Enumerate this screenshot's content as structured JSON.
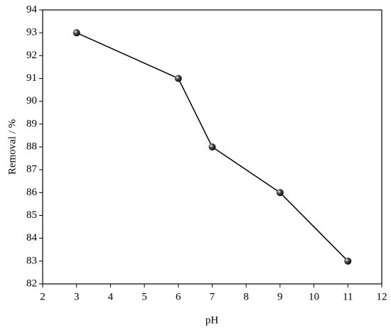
{
  "chart_data": {
    "type": "line",
    "x_label": "pH",
    "y_label": "Removal / %",
    "x": [
      3,
      6,
      7,
      9,
      11
    ],
    "series": [
      {
        "name": "Removal",
        "color": "#000000",
        "values": [
          93,
          91,
          88,
          86,
          83
        ]
      }
    ],
    "xlim": [
      2,
      12
    ],
    "xticks": [
      2,
      3,
      4,
      5,
      6,
      7,
      8,
      9,
      10,
      11,
      12
    ],
    "ylim": [
      82,
      94
    ],
    "yticks": [
      82,
      83,
      84,
      85,
      86,
      87,
      88,
      89,
      90,
      91,
      92,
      93,
      94
    ]
  }
}
